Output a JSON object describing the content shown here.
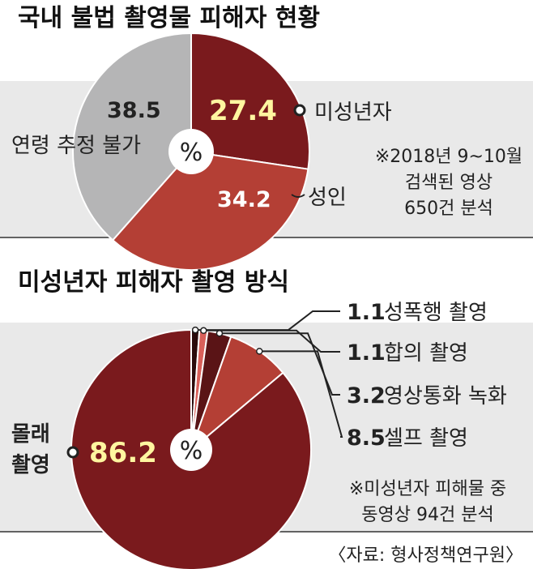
{
  "colors": {
    "band": "#e9e9e9",
    "maroon": "#7a1a1d",
    "brick": "#b43f35",
    "gray": "#b5b5b6",
    "dark_maroon": "#5a1416",
    "light_red": "#d9605a",
    "yellow_value": "#fff6a0",
    "text": "#222222"
  },
  "chart_data": [
    {
      "type": "pie",
      "title": "국내 불법 촬영물 피해자 현황",
      "center_label": "%",
      "slices": [
        {
          "label": "미성년자",
          "value": 27.4,
          "display": "27.4",
          "color": "#7a1a1d",
          "value_color": "#fff6a0"
        },
        {
          "label": "성인",
          "value": 34.2,
          "display": "34.2",
          "color": "#b43f35",
          "value_color": "#ffffff"
        },
        {
          "label": "연령 추정 불가",
          "value": 38.5,
          "display": "38.5",
          "color": "#b5b5b6",
          "value_color": "#222222"
        }
      ],
      "note_lines": [
        "※2018년 9~10월",
        "검색된 영상",
        "650건 분석"
      ]
    },
    {
      "type": "pie",
      "title": "미성년자 피해자 촬영 방식",
      "center_label": "%",
      "slices": [
        {
          "label": "성폭행 촬영",
          "value": 1.1,
          "display": "1.1",
          "color": "#2b0a0b"
        },
        {
          "label": "합의 촬영",
          "value": 1.1,
          "display": "1.1",
          "color": "#d9605a"
        },
        {
          "label": "영상통화 녹화",
          "value": 3.2,
          "display": "3.2",
          "color": "#5a1416"
        },
        {
          "label": "셀프 촬영",
          "value": 8.5,
          "display": "8.5",
          "color": "#b43f35"
        },
        {
          "label": "몰래 촬영",
          "value": 86.2,
          "display": "86.2",
          "color": "#7a1a1d",
          "value_color": "#fff6a0"
        }
      ],
      "side_label_lines": [
        "몰래",
        "촬영"
      ],
      "note_lines": [
        "※미성년자 피해물 중",
        "동영상 94건 분석"
      ]
    }
  ],
  "source": "〈자료: 형사정책연구원〉"
}
